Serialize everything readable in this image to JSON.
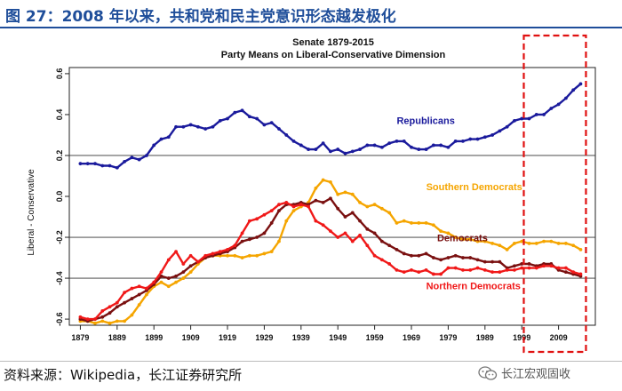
{
  "figure_title": "图 27：2008 年以来，共和党和民主党意识形态越发极化",
  "source_text": "资料来源：Wikipedia，长江证券研究所",
  "watermark_text": "长江宏观固收",
  "colors": {
    "republicans": "#1a1a9c",
    "southern_democrats": "#f5a500",
    "democrats": "#7a1010",
    "northern_democrats": "#f01818",
    "highlight_box": "#e01010",
    "title_blue": "#1f4e9a"
  },
  "chart_data": {
    "type": "line",
    "title": "Senate 1879-2015",
    "subtitle": "Party Means on Liberal-Conservative Dimension",
    "xlabel": "",
    "ylabel": "Liberal - Conservative",
    "xlim": [
      1876,
      2019
    ],
    "ylim": [
      -0.63,
      0.63
    ],
    "x_ticks": [
      "1879",
      "1889",
      "1899",
      "1909",
      "1919",
      "1929",
      "1939",
      "1949",
      "1959",
      "1969",
      "1979",
      "1989",
      "1999",
      "2009"
    ],
    "y_ticks": [
      "0.6",
      "0.4",
      "0.2",
      "0.0",
      "-0.2",
      "-0.4",
      "-0.6"
    ],
    "y_tick_values": [
      0.6,
      0.4,
      0.2,
      0.0,
      -0.2,
      -0.4,
      -0.6
    ],
    "grid_horizontal_at": [
      0.2,
      -0.2,
      -0.4
    ],
    "highlight_range": [
      2001,
      2015
    ],
    "series": [
      {
        "name": "Republicans",
        "color_key": "republicans",
        "points": [
          [
            1879,
            0.16
          ],
          [
            1881,
            0.16
          ],
          [
            1883,
            0.16
          ],
          [
            1885,
            0.15
          ],
          [
            1887,
            0.15
          ],
          [
            1889,
            0.14
          ],
          [
            1891,
            0.17
          ],
          [
            1893,
            0.19
          ],
          [
            1895,
            0.18
          ],
          [
            1897,
            0.2
          ],
          [
            1899,
            0.25
          ],
          [
            1901,
            0.28
          ],
          [
            1903,
            0.29
          ],
          [
            1905,
            0.34
          ],
          [
            1907,
            0.34
          ],
          [
            1909,
            0.35
          ],
          [
            1911,
            0.34
          ],
          [
            1913,
            0.33
          ],
          [
            1915,
            0.34
          ],
          [
            1917,
            0.37
          ],
          [
            1919,
            0.38
          ],
          [
            1921,
            0.41
          ],
          [
            1923,
            0.42
          ],
          [
            1925,
            0.39
          ],
          [
            1927,
            0.38
          ],
          [
            1929,
            0.35
          ],
          [
            1931,
            0.36
          ],
          [
            1933,
            0.33
          ],
          [
            1935,
            0.3
          ],
          [
            1937,
            0.27
          ],
          [
            1939,
            0.25
          ],
          [
            1941,
            0.23
          ],
          [
            1943,
            0.23
          ],
          [
            1945,
            0.26
          ],
          [
            1947,
            0.22
          ],
          [
            1949,
            0.23
          ],
          [
            1951,
            0.21
          ],
          [
            1953,
            0.22
          ],
          [
            1955,
            0.23
          ],
          [
            1957,
            0.25
          ],
          [
            1959,
            0.25
          ],
          [
            1961,
            0.24
          ],
          [
            1963,
            0.26
          ],
          [
            1965,
            0.27
          ],
          [
            1967,
            0.27
          ],
          [
            1969,
            0.24
          ],
          [
            1971,
            0.23
          ],
          [
            1973,
            0.23
          ],
          [
            1975,
            0.25
          ],
          [
            1977,
            0.25
          ],
          [
            1979,
            0.24
          ],
          [
            1981,
            0.27
          ],
          [
            1983,
            0.27
          ],
          [
            1985,
            0.28
          ],
          [
            1987,
            0.28
          ],
          [
            1989,
            0.29
          ],
          [
            1991,
            0.3
          ],
          [
            1993,
            0.32
          ],
          [
            1995,
            0.34
          ],
          [
            1997,
            0.37
          ],
          [
            1999,
            0.38
          ],
          [
            2001,
            0.38
          ],
          [
            2003,
            0.4
          ],
          [
            2005,
            0.4
          ],
          [
            2007,
            0.43
          ],
          [
            2009,
            0.45
          ],
          [
            2011,
            0.48
          ],
          [
            2013,
            0.52
          ],
          [
            2015,
            0.55
          ]
        ]
      },
      {
        "name": "Southern Democrats",
        "color_key": "southern_democrats",
        "points": [
          [
            1879,
            -0.61
          ],
          [
            1881,
            -0.61
          ],
          [
            1883,
            -0.62
          ],
          [
            1885,
            -0.61
          ],
          [
            1887,
            -0.62
          ],
          [
            1889,
            -0.61
          ],
          [
            1891,
            -0.61
          ],
          [
            1893,
            -0.58
          ],
          [
            1895,
            -0.53
          ],
          [
            1897,
            -0.48
          ],
          [
            1899,
            -0.44
          ],
          [
            1901,
            -0.42
          ],
          [
            1903,
            -0.44
          ],
          [
            1905,
            -0.42
          ],
          [
            1907,
            -0.4
          ],
          [
            1909,
            -0.37
          ],
          [
            1911,
            -0.33
          ],
          [
            1913,
            -0.3
          ],
          [
            1915,
            -0.29
          ],
          [
            1917,
            -0.29
          ],
          [
            1919,
            -0.29
          ],
          [
            1921,
            -0.29
          ],
          [
            1923,
            -0.3
          ],
          [
            1925,
            -0.29
          ],
          [
            1927,
            -0.29
          ],
          [
            1929,
            -0.28
          ],
          [
            1931,
            -0.27
          ],
          [
            1933,
            -0.22
          ],
          [
            1935,
            -0.12
          ],
          [
            1937,
            -0.07
          ],
          [
            1939,
            -0.05
          ],
          [
            1941,
            -0.03
          ],
          [
            1943,
            0.04
          ],
          [
            1945,
            0.08
          ],
          [
            1947,
            0.07
          ],
          [
            1949,
            0.01
          ],
          [
            1951,
            0.02
          ],
          [
            1953,
            0.01
          ],
          [
            1955,
            -0.03
          ],
          [
            1957,
            -0.05
          ],
          [
            1959,
            -0.04
          ],
          [
            1961,
            -0.06
          ],
          [
            1963,
            -0.08
          ],
          [
            1965,
            -0.13
          ],
          [
            1967,
            -0.12
          ],
          [
            1969,
            -0.13
          ],
          [
            1971,
            -0.13
          ],
          [
            1973,
            -0.13
          ],
          [
            1975,
            -0.14
          ],
          [
            1977,
            -0.17
          ],
          [
            1979,
            -0.18
          ],
          [
            1981,
            -0.2
          ],
          [
            1983,
            -0.21
          ],
          [
            1985,
            -0.21
          ],
          [
            1987,
            -0.22
          ],
          [
            1989,
            -0.22
          ],
          [
            1991,
            -0.23
          ],
          [
            1993,
            -0.24
          ],
          [
            1995,
            -0.26
          ],
          [
            1997,
            -0.23
          ],
          [
            1999,
            -0.22
          ],
          [
            2001,
            -0.23
          ],
          [
            2003,
            -0.23
          ],
          [
            2005,
            -0.22
          ],
          [
            2007,
            -0.22
          ],
          [
            2009,
            -0.23
          ],
          [
            2011,
            -0.23
          ],
          [
            2013,
            -0.24
          ],
          [
            2015,
            -0.26
          ]
        ]
      },
      {
        "name": "Democrats",
        "color_key": "democrats",
        "points": [
          [
            1879,
            -0.6
          ],
          [
            1881,
            -0.61
          ],
          [
            1883,
            -0.6
          ],
          [
            1885,
            -0.59
          ],
          [
            1887,
            -0.57
          ],
          [
            1889,
            -0.54
          ],
          [
            1891,
            -0.52
          ],
          [
            1893,
            -0.5
          ],
          [
            1895,
            -0.48
          ],
          [
            1897,
            -0.46
          ],
          [
            1899,
            -0.43
          ],
          [
            1901,
            -0.39
          ],
          [
            1903,
            -0.4
          ],
          [
            1905,
            -0.39
          ],
          [
            1907,
            -0.37
          ],
          [
            1909,
            -0.34
          ],
          [
            1911,
            -0.32
          ],
          [
            1913,
            -0.3
          ],
          [
            1915,
            -0.29
          ],
          [
            1917,
            -0.28
          ],
          [
            1919,
            -0.27
          ],
          [
            1921,
            -0.25
          ],
          [
            1923,
            -0.22
          ],
          [
            1925,
            -0.21
          ],
          [
            1927,
            -0.2
          ],
          [
            1929,
            -0.18
          ],
          [
            1931,
            -0.13
          ],
          [
            1933,
            -0.07
          ],
          [
            1935,
            -0.04
          ],
          [
            1937,
            -0.04
          ],
          [
            1939,
            -0.03
          ],
          [
            1941,
            -0.04
          ],
          [
            1943,
            -0.02
          ],
          [
            1945,
            -0.03
          ],
          [
            1947,
            -0.01
          ],
          [
            1949,
            -0.06
          ],
          [
            1951,
            -0.1
          ],
          [
            1953,
            -0.08
          ],
          [
            1955,
            -0.12
          ],
          [
            1957,
            -0.16
          ],
          [
            1959,
            -0.18
          ],
          [
            1961,
            -0.22
          ],
          [
            1963,
            -0.24
          ],
          [
            1965,
            -0.26
          ],
          [
            1967,
            -0.28
          ],
          [
            1969,
            -0.29
          ],
          [
            1971,
            -0.29
          ],
          [
            1973,
            -0.28
          ],
          [
            1975,
            -0.3
          ],
          [
            1977,
            -0.31
          ],
          [
            1979,
            -0.3
          ],
          [
            1981,
            -0.29
          ],
          [
            1983,
            -0.3
          ],
          [
            1985,
            -0.3
          ],
          [
            1987,
            -0.31
          ],
          [
            1989,
            -0.32
          ],
          [
            1991,
            -0.32
          ],
          [
            1993,
            -0.32
          ],
          [
            1995,
            -0.35
          ],
          [
            1997,
            -0.34
          ],
          [
            1999,
            -0.33
          ],
          [
            2001,
            -0.33
          ],
          [
            2003,
            -0.34
          ],
          [
            2005,
            -0.33
          ],
          [
            2007,
            -0.33
          ],
          [
            2009,
            -0.36
          ],
          [
            2011,
            -0.37
          ],
          [
            2013,
            -0.38
          ],
          [
            2015,
            -0.39
          ]
        ]
      },
      {
        "name": "Northern Democrats",
        "color_key": "northern_democrats",
        "points": [
          [
            1879,
            -0.59
          ],
          [
            1881,
            -0.6
          ],
          [
            1883,
            -0.6
          ],
          [
            1885,
            -0.56
          ],
          [
            1887,
            -0.54
          ],
          [
            1889,
            -0.52
          ],
          [
            1891,
            -0.47
          ],
          [
            1893,
            -0.45
          ],
          [
            1895,
            -0.44
          ],
          [
            1897,
            -0.45
          ],
          [
            1899,
            -0.42
          ],
          [
            1901,
            -0.37
          ],
          [
            1903,
            -0.31
          ],
          [
            1905,
            -0.27
          ],
          [
            1907,
            -0.33
          ],
          [
            1909,
            -0.29
          ],
          [
            1911,
            -0.32
          ],
          [
            1913,
            -0.29
          ],
          [
            1915,
            -0.28
          ],
          [
            1917,
            -0.27
          ],
          [
            1919,
            -0.26
          ],
          [
            1921,
            -0.24
          ],
          [
            1923,
            -0.18
          ],
          [
            1925,
            -0.12
          ],
          [
            1927,
            -0.11
          ],
          [
            1929,
            -0.09
          ],
          [
            1931,
            -0.07
          ],
          [
            1933,
            -0.04
          ],
          [
            1935,
            -0.03
          ],
          [
            1937,
            -0.05
          ],
          [
            1939,
            -0.04
          ],
          [
            1941,
            -0.05
          ],
          [
            1943,
            -0.12
          ],
          [
            1945,
            -0.14
          ],
          [
            1947,
            -0.17
          ],
          [
            1949,
            -0.2
          ],
          [
            1951,
            -0.18
          ],
          [
            1953,
            -0.22
          ],
          [
            1955,
            -0.19
          ],
          [
            1957,
            -0.24
          ],
          [
            1959,
            -0.29
          ],
          [
            1961,
            -0.31
          ],
          [
            1963,
            -0.33
          ],
          [
            1965,
            -0.36
          ],
          [
            1967,
            -0.37
          ],
          [
            1969,
            -0.36
          ],
          [
            1971,
            -0.37
          ],
          [
            1973,
            -0.36
          ],
          [
            1975,
            -0.38
          ],
          [
            1977,
            -0.38
          ],
          [
            1979,
            -0.35
          ],
          [
            1981,
            -0.35
          ],
          [
            1983,
            -0.36
          ],
          [
            1985,
            -0.36
          ],
          [
            1987,
            -0.35
          ],
          [
            1989,
            -0.36
          ],
          [
            1991,
            -0.37
          ],
          [
            1993,
            -0.37
          ],
          [
            1995,
            -0.36
          ],
          [
            1997,
            -0.36
          ],
          [
            1999,
            -0.35
          ],
          [
            2001,
            -0.35
          ],
          [
            2003,
            -0.35
          ],
          [
            2005,
            -0.34
          ],
          [
            2007,
            -0.34
          ],
          [
            2009,
            -0.35
          ],
          [
            2011,
            -0.35
          ],
          [
            2013,
            -0.37
          ],
          [
            2015,
            -0.38
          ]
        ]
      }
    ],
    "annotations": [
      {
        "text": "Republicans",
        "series": "Republicans",
        "x": 1965,
        "y": 0.355
      },
      {
        "text": "Southern Democrats",
        "series": "Southern Democrats",
        "x": 1973,
        "y": 0.03
      },
      {
        "text": "Democrats",
        "series": "Democrats",
        "x": 1976,
        "y": -0.22
      },
      {
        "text": "Northern Democrats",
        "series": "Northern Democrats",
        "x": 1973,
        "y": -0.455
      }
    ]
  }
}
